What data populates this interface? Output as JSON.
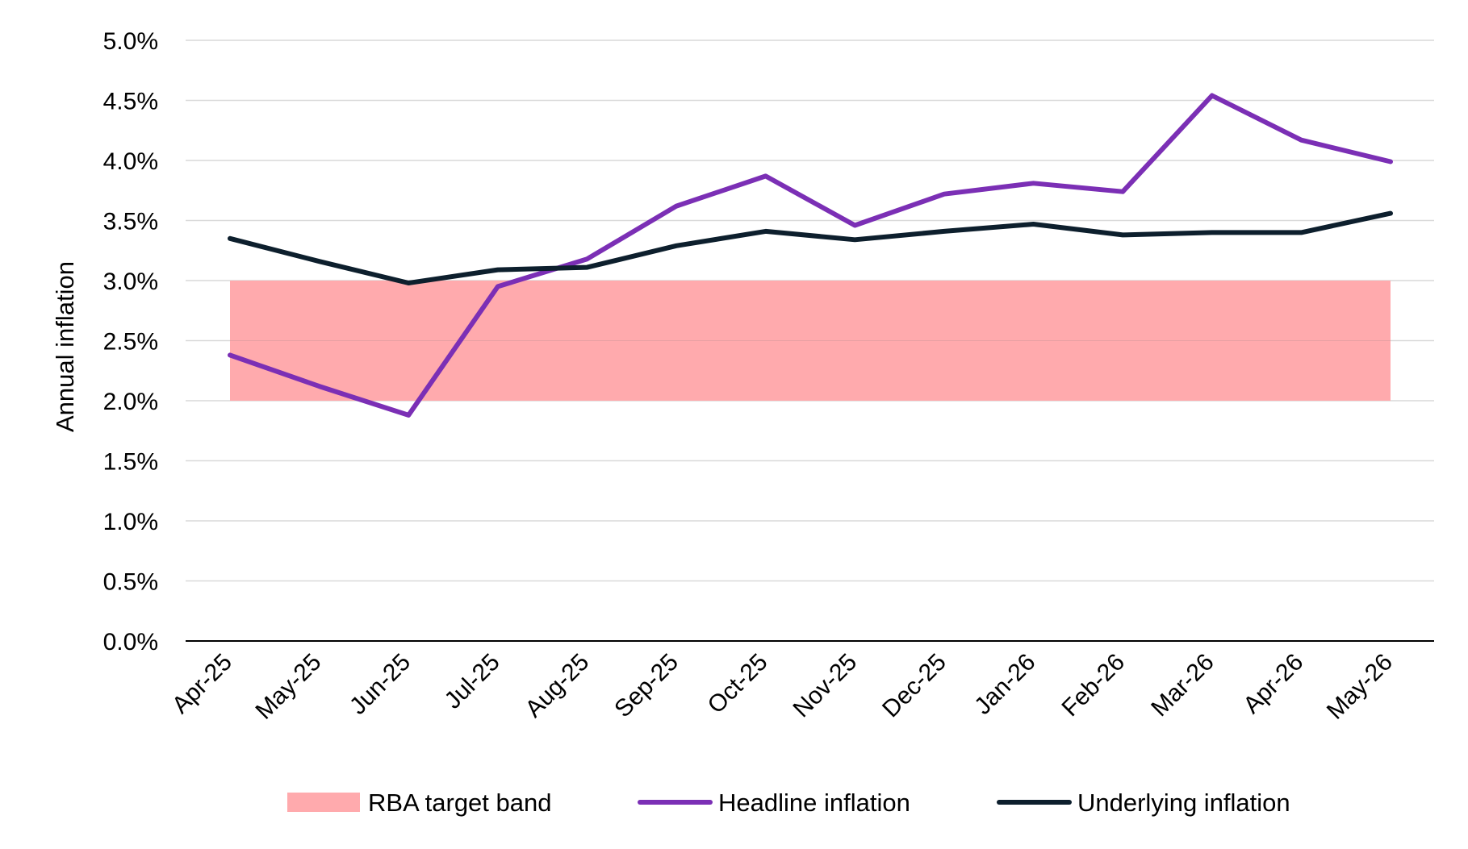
{
  "chart_data": {
    "type": "line",
    "title": "",
    "xlabel": "",
    "ylabel": "Annual inflation",
    "ylim": [
      0,
      5
    ],
    "y_ticks": [
      "0.0%",
      "0.5%",
      "1.0%",
      "1.5%",
      "2.0%",
      "2.5%",
      "3.0%",
      "3.5%",
      "4.0%",
      "4.5%",
      "5.0%"
    ],
    "categories": [
      "Apr-25",
      "May-25",
      "Jun-25",
      "Jul-25",
      "Aug-25",
      "Sep-25",
      "Oct-25",
      "Nov-25",
      "Dec-25",
      "Jan-26",
      "Feb-26",
      "Mar-26",
      "Apr-26",
      "May-26"
    ],
    "band": {
      "name": "RBA target band",
      "low": 2.0,
      "high": 3.0,
      "color": "#ffaaad"
    },
    "series": [
      {
        "name": "Headline inflation",
        "color": "#7b2fb5",
        "values": [
          2.38,
          2.12,
          1.88,
          2.95,
          3.18,
          3.62,
          3.87,
          3.46,
          3.72,
          3.81,
          3.74,
          4.54,
          4.17,
          3.99
        ]
      },
      {
        "name": "Underlying inflation",
        "color": "#0d1f2d",
        "values": [
          3.35,
          3.16,
          2.98,
          3.09,
          3.11,
          3.29,
          3.41,
          3.34,
          3.41,
          3.47,
          3.38,
          3.4,
          3.4,
          3.56
        ]
      }
    ],
    "grid": true,
    "legend_position": "bottom"
  }
}
